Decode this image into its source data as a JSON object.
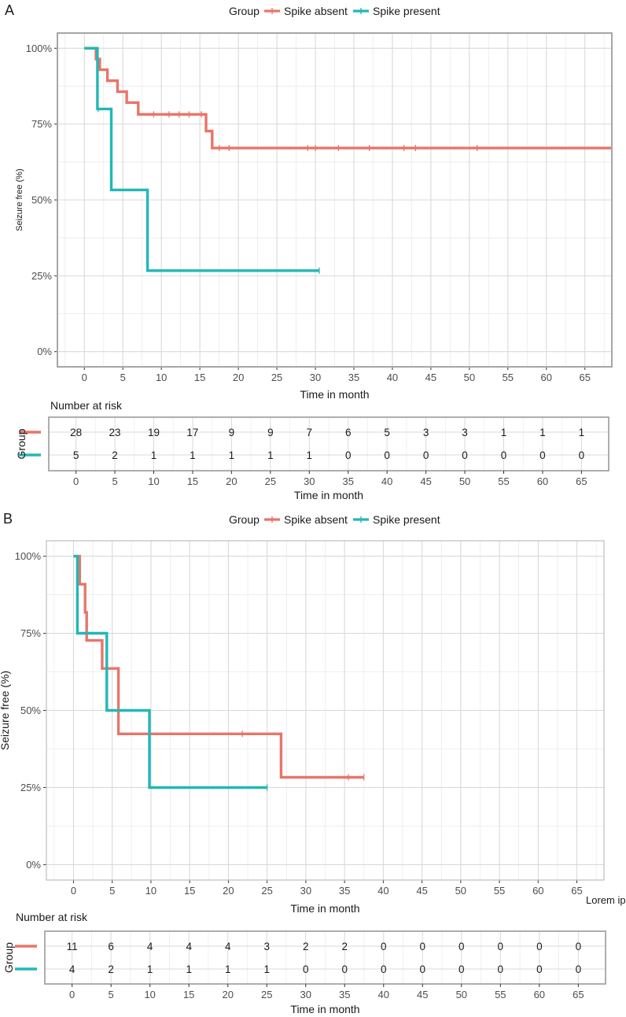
{
  "colors": {
    "spike_absent": "#E8756A",
    "spike_present": "#22B8B5",
    "grid_major": "#D9D9D9",
    "grid_minor": "#EBEBEB",
    "frame": "#A6A6A6"
  },
  "chart_data": [
    {
      "panel": "A",
      "type": "line",
      "subtype": "kaplan-meier",
      "legend_title": "Group",
      "legend": [
        "Spike absent",
        "Spike present"
      ],
      "legend_position": "top",
      "ylabel": "Seizure free (%)",
      "xlabel": "Time in month",
      "xlim": [
        -3.5,
        68.5
      ],
      "ylim": [
        -5,
        105
      ],
      "x_ticks": [
        0,
        5,
        10,
        15,
        20,
        25,
        30,
        35,
        40,
        45,
        50,
        55,
        60,
        65
      ],
      "y_ticks": [
        0,
        25,
        50,
        75,
        100
      ],
      "y_tick_labels": [
        "0%",
        "25%",
        "50%",
        "75%",
        "100%"
      ],
      "series": [
        {
          "name": "Spike absent",
          "steps": [
            [
              0,
              100
            ],
            [
              1.5,
              100
            ],
            [
              1.5,
              96.4
            ],
            [
              2,
              96.4
            ],
            [
              2,
              92.9
            ],
            [
              3,
              92.9
            ],
            [
              3,
              89.3
            ],
            [
              4.3,
              89.3
            ],
            [
              4.3,
              85.7
            ],
            [
              5.5,
              85.7
            ],
            [
              5.5,
              82.1
            ],
            [
              7,
              82.1
            ],
            [
              7,
              78.2
            ],
            [
              15.8,
              78.2
            ],
            [
              15.8,
              72.7
            ],
            [
              16.6,
              72.7
            ],
            [
              16.6,
              67.1
            ],
            [
              68.5,
              67.1
            ]
          ],
          "censored": [
            [
              9,
              78.2
            ],
            [
              11,
              78.2
            ],
            [
              12.3,
              78.2
            ],
            [
              13.6,
              78.2
            ],
            [
              15.2,
              78.2
            ],
            [
              17.5,
              67.1
            ],
            [
              18.8,
              67.1
            ],
            [
              29,
              67.1
            ],
            [
              30,
              67.1
            ],
            [
              33,
              67.1
            ],
            [
              37,
              67.1
            ],
            [
              41.5,
              67.1
            ],
            [
              43,
              67.1
            ],
            [
              51,
              67.1
            ]
          ]
        },
        {
          "name": "Spike present",
          "steps": [
            [
              0,
              100
            ],
            [
              1.7,
              100
            ],
            [
              1.7,
              80
            ],
            [
              3.5,
              80
            ],
            [
              3.5,
              53.3
            ],
            [
              8.2,
              53.3
            ],
            [
              8.2,
              26.7
            ],
            [
              30.5,
              26.7
            ]
          ],
          "censored": [
            [
              1.8,
              80
            ],
            [
              30.5,
              26.7
            ]
          ]
        }
      ],
      "risk_table": {
        "title": "Number at risk",
        "y_title": "Group",
        "x_title": "Time in month",
        "times": [
          0,
          5,
          10,
          15,
          20,
          25,
          30,
          35,
          40,
          45,
          50,
          55,
          60,
          65
        ],
        "rows": [
          {
            "name": "Spike absent",
            "values": [
              "28",
              "23",
              "19",
              "17",
              "9",
              "9",
              "7",
              "6",
              "5",
              "3",
              "3",
              "1",
              "1",
              "1"
            ]
          },
          {
            "name": "Spike present",
            "values": [
              "5",
              "2",
              "1",
              "1",
              "1",
              "1",
              "1",
              "0",
              "0",
              "0",
              "0",
              "0",
              "0",
              "0"
            ]
          }
        ]
      }
    },
    {
      "panel": "B",
      "type": "line",
      "subtype": "kaplan-meier",
      "legend_title": "Group",
      "legend": [
        "Spike absent",
        "Spike present"
      ],
      "legend_position": "top",
      "ylabel": "Seizure free (%)",
      "xlabel": "Time in month",
      "corner_note": "Lorem ipsum",
      "xlim": [
        -3.5,
        68.5
      ],
      "ylim": [
        -5,
        105
      ],
      "x_ticks": [
        0,
        5,
        10,
        15,
        20,
        25,
        30,
        35,
        40,
        45,
        50,
        55,
        60,
        65
      ],
      "y_ticks": [
        0,
        25,
        50,
        75,
        100
      ],
      "y_tick_labels": [
        "0%",
        "25%",
        "50%",
        "75%",
        "100%"
      ],
      "series": [
        {
          "name": "Spike absent",
          "steps": [
            [
              0,
              100
            ],
            [
              0.8,
              100
            ],
            [
              0.8,
              90.9
            ],
            [
              1.5,
              90.9
            ],
            [
              1.5,
              81.8
            ],
            [
              1.7,
              81.8
            ],
            [
              1.7,
              72.7
            ],
            [
              3.7,
              72.7
            ],
            [
              3.7,
              63.6
            ],
            [
              5.8,
              63.6
            ],
            [
              5.8,
              42.4
            ],
            [
              26.8,
              42.4
            ],
            [
              26.8,
              28.3
            ],
            [
              37.5,
              28.3
            ]
          ],
          "censored": [
            [
              21.8,
              42.4
            ],
            [
              35.5,
              28.3
            ],
            [
              37.5,
              28.3
            ]
          ]
        },
        {
          "name": "Spike present",
          "steps": [
            [
              0,
              100
            ],
            [
              0.5,
              100
            ],
            [
              0.5,
              75
            ],
            [
              4.3,
              75
            ],
            [
              4.3,
              50
            ],
            [
              9.8,
              50
            ],
            [
              9.8,
              25
            ],
            [
              25,
              25
            ]
          ],
          "censored": [
            [
              25,
              25
            ]
          ]
        }
      ],
      "risk_table": {
        "title": "Number at risk",
        "y_title": "Group",
        "x_title": "Time in month",
        "times": [
          0,
          5,
          10,
          15,
          20,
          25,
          30,
          35,
          40,
          45,
          50,
          55,
          60,
          65
        ],
        "rows": [
          {
            "name": "Spike absent",
            "values": [
              "11",
              "6",
              "4",
              "4",
              "4",
              "3",
              "2",
              "2",
              "0",
              "0",
              "0",
              "0",
              "0",
              "0"
            ]
          },
          {
            "name": "Spike present",
            "values": [
              "4",
              "2",
              "1",
              "1",
              "1",
              "1",
              "0",
              "0",
              "0",
              "0",
              "0",
              "0",
              "0",
              "0"
            ]
          }
        ]
      }
    }
  ]
}
